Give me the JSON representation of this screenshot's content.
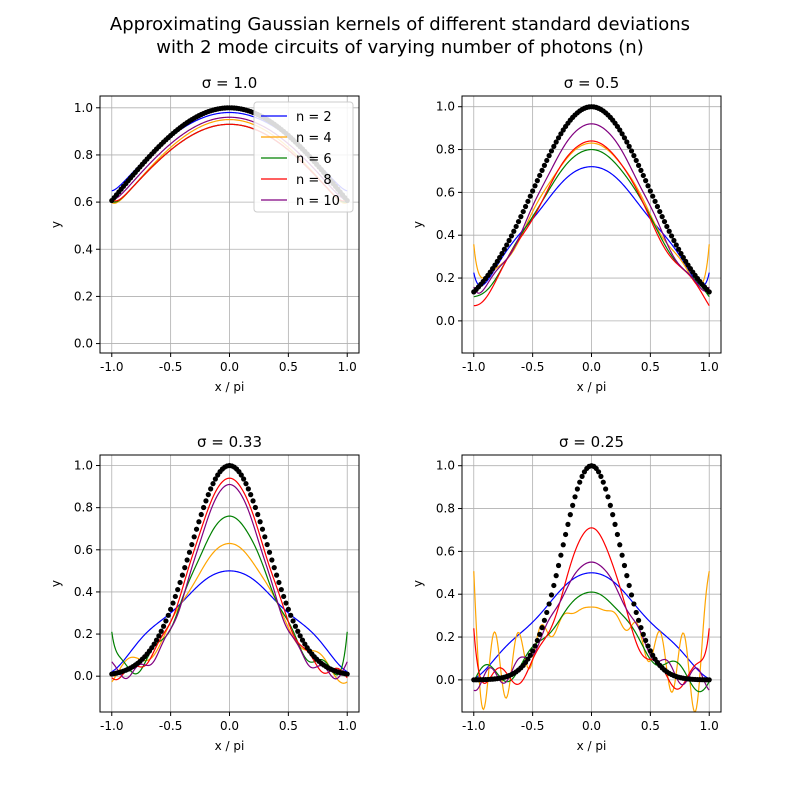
{
  "figure": {
    "title_line1": "Approximating Gaussian kernels of different standard deviations",
    "title_line2": "with 2 mode circuits of varying number of photons (n)"
  },
  "colors": {
    "n = 2": "#0000ff",
    "n = 4": "#ffa500",
    "n = 6": "#008000",
    "n = 8": "#ff0000",
    "n = 10": "#800080",
    "target": "#000000",
    "grid": "#b0b0b0"
  },
  "legend": {
    "placement": "upper-right of first panel",
    "entries": [
      "n = 2",
      "n = 4",
      "n = 6",
      "n = 8",
      "n = 10"
    ]
  },
  "chart_data": [
    {
      "type": "line",
      "title": "σ = 1.0",
      "sigma": 1.0,
      "xlabel": "x / pi",
      "ylabel": "y",
      "xlim": [
        -1.1,
        1.1
      ],
      "ylim": [
        -0.04,
        1.05
      ],
      "xticks": [
        "-1.0",
        "-0.5",
        "0.0",
        "0.5",
        "1.0"
      ],
      "yticks": [
        "0.0",
        "0.2",
        "0.4",
        "0.6",
        "0.8",
        "1.0"
      ],
      "grid": true,
      "target": {
        "style": "black dots",
        "function": "exp(-x^2 / (2 sigma^2)) with x in units of pi"
      },
      "series": [
        {
          "name": "n = 2",
          "peak": 0.98,
          "ripple_amp": 0.0,
          "freq": 1,
          "edge": 0.02,
          "width_factor": 1.06
        },
        {
          "name": "n = 4",
          "peak": 0.95,
          "ripple_amp": 0.0,
          "freq": 2,
          "edge": 0.04,
          "width_factor": 0.97
        },
        {
          "name": "n = 6",
          "peak": 0.93,
          "ripple_amp": 0.0,
          "freq": 3,
          "edge": 0.04,
          "width_factor": 1.0
        },
        {
          "name": "n = 8",
          "peak": 0.93,
          "ripple_amp": 0.0,
          "freq": 4,
          "edge": 0.05,
          "width_factor": 1.0
        },
        {
          "name": "n = 10",
          "peak": 0.96,
          "ripple_amp": 0.0,
          "freq": 5,
          "edge": 0.03,
          "width_factor": 1.0
        }
      ]
    },
    {
      "type": "line",
      "title": "σ = 0.5",
      "sigma": 0.5,
      "xlabel": "x / pi",
      "ylabel": "y",
      "xlim": [
        -1.1,
        1.1
      ],
      "ylim": [
        -0.15,
        1.05
      ],
      "xticks": [
        "-1.0",
        "-0.5",
        "0.0",
        "0.5",
        "1.0"
      ],
      "yticks": [
        "0.0",
        "0.2",
        "0.4",
        "0.6",
        "0.8",
        "1.0"
      ],
      "grid": true,
      "target": {
        "style": "black dots",
        "function": "exp(-x^2 / (2 sigma^2)) with x in units of pi"
      },
      "series": [
        {
          "name": "n = 2",
          "peak": 0.72,
          "ripple_amp": 0.09,
          "freq": 3,
          "edge": 0.13,
          "width_factor": 1.1
        },
        {
          "name": "n = 4",
          "peak": 0.83,
          "ripple_amp": 0.06,
          "freq": 5,
          "edge": 0.27,
          "width_factor": 1.0
        },
        {
          "name": "n = 6",
          "peak": 0.8,
          "ripple_amp": 0.05,
          "freq": 4,
          "edge": 0.0,
          "width_factor": 1.0
        },
        {
          "name": "n = 8",
          "peak": 0.84,
          "ripple_amp": 0.07,
          "freq": 4,
          "edge": 0.0,
          "width_factor": 0.95
        },
        {
          "name": "n = 10",
          "peak": 0.92,
          "ripple_amp": 0.04,
          "freq": 6,
          "edge": 0.08,
          "width_factor": 0.95
        }
      ]
    },
    {
      "type": "line",
      "title": "σ = 0.33",
      "sigma": 0.33,
      "xlabel": "x / pi",
      "ylabel": "y",
      "xlim": [
        -1.1,
        1.1
      ],
      "ylim": [
        -0.17,
        1.05
      ],
      "xticks": [
        "-1.0",
        "-0.5",
        "0.0",
        "0.5",
        "1.0"
      ],
      "yticks": [
        "0.0",
        "0.2",
        "0.4",
        "0.6",
        "0.8",
        "1.0"
      ],
      "grid": true,
      "target": {
        "style": "black dots",
        "function": "exp(-x^2 / (2 sigma^2)) with x in units of pi"
      },
      "series": [
        {
          "name": "n = 2",
          "peak": 0.5,
          "ripple_amp": 0.08,
          "freq": 3,
          "edge": 0.0,
          "width_factor": 1.5
        },
        {
          "name": "n = 4",
          "peak": 0.63,
          "ripple_amp": 0.07,
          "freq": 5,
          "edge": 0.0,
          "width_factor": 1.1
        },
        {
          "name": "n = 6",
          "peak": 0.76,
          "ripple_amp": 0.05,
          "freq": 7,
          "edge": 0.21,
          "width_factor": 1.0
        },
        {
          "name": "n = 8",
          "peak": 0.94,
          "ripple_amp": 0.03,
          "freq": 8,
          "edge": 0.0,
          "width_factor": 0.95
        },
        {
          "name": "n = 10",
          "peak": 0.91,
          "ripple_amp": 0.03,
          "freq": 9,
          "edge": 0.04,
          "width_factor": 0.9
        }
      ]
    },
    {
      "type": "line",
      "title": "σ = 0.25",
      "sigma": 0.25,
      "xlabel": "x / pi",
      "ylabel": "y",
      "xlim": [
        -1.1,
        1.1
      ],
      "ylim": [
        -0.15,
        1.05
      ],
      "xticks": [
        "-1.0",
        "-0.5",
        "0.0",
        "0.5",
        "1.0"
      ],
      "yticks": [
        "0.0",
        "0.2",
        "0.4",
        "0.6",
        "0.8",
        "1.0"
      ],
      "grid": true,
      "target": {
        "style": "black dots",
        "function": "exp(-x^2 / (2 sigma^2)) with x in units of pi"
      },
      "series": [
        {
          "name": "n = 2",
          "peak": 0.5,
          "ripple_amp": 0.06,
          "freq": 3,
          "edge": 0.0,
          "width_factor": 1.8
        },
        {
          "name": "n = 4",
          "peak": 0.34,
          "ripple_amp": 0.32,
          "freq": 10,
          "edge": 0.32,
          "width_factor": 1.6
        },
        {
          "name": "n = 6",
          "peak": 0.41,
          "ripple_amp": 0.08,
          "freq": 5,
          "edge": 0.0,
          "width_factor": 1.3
        },
        {
          "name": "n = 8",
          "peak": 0.71,
          "ripple_amp": 0.06,
          "freq": 6,
          "edge": 0.27,
          "width_factor": 0.95
        },
        {
          "name": "n = 10",
          "peak": 0.55,
          "ripple_amp": 0.06,
          "freq": 8,
          "edge": 0.0,
          "width_factor": 1.2
        }
      ]
    }
  ]
}
